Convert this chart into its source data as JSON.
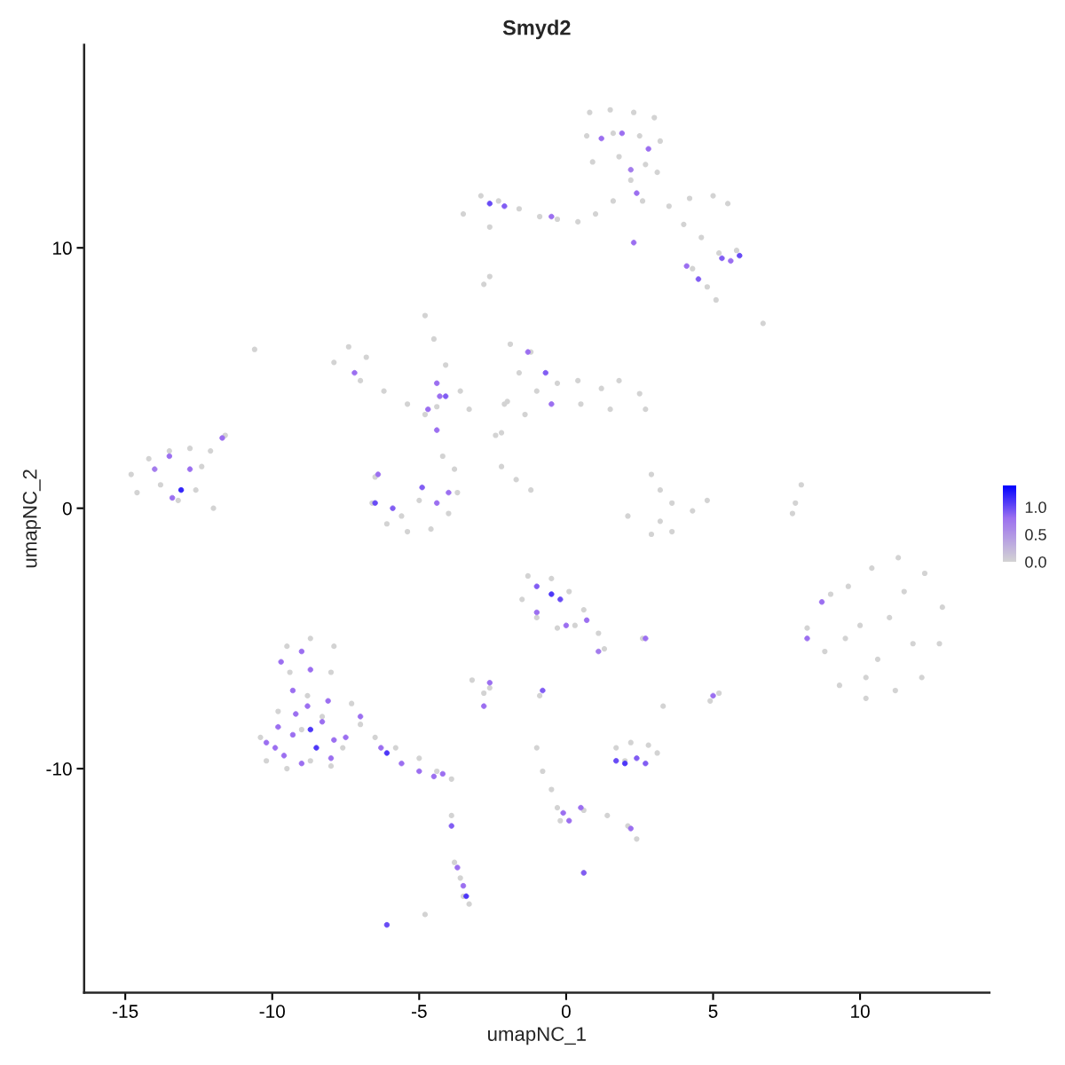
{
  "chart_data": {
    "type": "scatter",
    "title": "Smyd2",
    "xlabel": "umapNC_1",
    "ylabel": "umapNC_2",
    "xlim": [
      -16.4,
      14.4
    ],
    "ylim": [
      -18.6,
      17.8
    ],
    "xticks": [
      -15,
      -10,
      -5,
      0,
      5,
      10
    ],
    "yticks": [
      -10,
      0,
      10
    ],
    "clim": [
      0,
      1.4
    ],
    "cticks": [
      {
        "value": 0,
        "label": "0.0"
      },
      {
        "value": 0.5,
        "label": "0.5"
      },
      {
        "value": 1,
        "label": "1.0"
      }
    ],
    "grid": false,
    "legend": false,
    "marker": "circle",
    "series": [
      {
        "color": "#d3d3d3",
        "x": [
          0.8,
          1.5,
          2.3,
          3.0,
          0.7,
          1.6,
          2.5,
          3.2,
          0.9,
          1.8,
          2.7,
          3.1,
          2.2,
          2.6,
          3.5,
          4.2,
          5.0,
          5.5,
          4.0,
          4.6,
          5.2,
          5.8,
          4.3,
          4.8,
          5.1,
          -3.5,
          -2.9,
          -2.3,
          -1.6,
          -0.9,
          -0.3,
          0.4,
          1.0,
          1.6,
          -2.6,
          -2.8,
          -2.6,
          6.7,
          -7.9,
          -7.4,
          -6.8,
          -7.0,
          -6.2,
          -5.4,
          -4.8,
          -4.4,
          -6.5,
          -6.6,
          -6.1,
          -5.4,
          -4.6,
          -4.0,
          -3.7,
          -3.8,
          -4.2,
          -5.0,
          -5.6,
          -4.8,
          -4.5,
          -4.1,
          -3.6,
          -3.3,
          -1.9,
          -1.2,
          -1.6,
          -1.0,
          -0.3,
          0.4,
          1.2,
          1.8,
          2.5,
          2.7,
          1.5,
          0.5,
          -1.4,
          -2.2,
          -2.1,
          -14.8,
          -14.6,
          -14.2,
          -13.5,
          -12.8,
          -12.4,
          -12.6,
          -13.2,
          -13.8,
          -12.0,
          -11.6,
          -12.1,
          2.9,
          3.2,
          3.6,
          4.3,
          4.8,
          3.6,
          2.9,
          2.1,
          3.2,
          8.2,
          8.8,
          9.0,
          9.3,
          10.2,
          11.2,
          12.1,
          12.7,
          12.8,
          12.2,
          11.3,
          10.4,
          9.6,
          10.0,
          11.0,
          11.8,
          10.6,
          9.5,
          11.5,
          10.2,
          8.0,
          7.8,
          7.7,
          -1.3,
          -0.5,
          0.1,
          0.6,
          1.1,
          1.3,
          -1.5,
          -1.0,
          -0.3,
          0.3,
          -10.4,
          -10.2,
          -9.5,
          -8.7,
          -8.0,
          -7.6,
          -9.8,
          -9.4,
          -9.5,
          -8.7,
          -7.9,
          -8.0,
          -8.8,
          -7.3,
          -7.0,
          -6.5,
          -5.8,
          -5.0,
          -4.4,
          -3.9,
          -9.0,
          -8.3,
          -3.2,
          -2.6,
          -2.8,
          -0.9,
          4.9,
          5.2,
          1.7,
          2.2,
          2.8,
          3.1,
          2.0,
          2.6,
          3.3,
          -1.0,
          -0.8,
          -0.5,
          -0.3,
          -0.2,
          0.6,
          1.4,
          2.1,
          2.4,
          -3.8,
          -3.6,
          -3.5,
          -3.3,
          -3.9,
          -4.8,
          0.6,
          -2.2,
          -1.7,
          -1.2,
          -10.6,
          -2.4,
          -2.0
        ],
        "values": [
          15.2,
          15.3,
          15.2,
          15.0,
          14.3,
          14.4,
          14.3,
          14.1,
          13.3,
          13.5,
          13.2,
          12.9,
          12.6,
          11.8,
          11.6,
          11.9,
          12.0,
          11.7,
          10.9,
          10.4,
          9.8,
          9.9,
          9.2,
          8.5,
          8.0,
          11.3,
          12.0,
          11.8,
          11.5,
          11.2,
          11.1,
          11.0,
          11.3,
          11.8,
          10.8,
          8.6,
          8.9,
          7.1,
          5.6,
          6.2,
          5.8,
          4.9,
          4.5,
          4.0,
          3.6,
          3.9,
          1.2,
          0.2,
          -0.6,
          -0.9,
          -0.8,
          -0.2,
          0.6,
          1.5,
          2.0,
          0.3,
          -0.3,
          7.4,
          6.5,
          5.5,
          4.5,
          3.8,
          6.3,
          6.0,
          5.2,
          4.5,
          4.8,
          4.9,
          4.6,
          4.9,
          4.4,
          3.8,
          3.8,
          4.0,
          3.6,
          2.9,
          4.0,
          1.3,
          0.6,
          1.9,
          2.2,
          2.3,
          1.6,
          0.7,
          0.3,
          0.9,
          0.0,
          2.8,
          2.2,
          1.3,
          0.7,
          0.2,
          -0.1,
          0.3,
          -0.9,
          -1.0,
          -0.3,
          -0.5,
          -4.6,
          -5.5,
          -3.3,
          -6.8,
          -7.3,
          -7.0,
          -6.5,
          -5.2,
          -3.8,
          -2.5,
          -1.9,
          -2.3,
          -3.0,
          -4.5,
          -4.2,
          -5.2,
          -5.8,
          -5.0,
          -3.2,
          -6.5,
          0.9,
          0.2,
          -0.2,
          -2.6,
          -2.7,
          -3.2,
          -3.9,
          -4.8,
          -5.4,
          -3.5,
          -4.2,
          -4.6,
          -4.5,
          -8.8,
          -9.7,
          -10.0,
          -9.7,
          -9.9,
          -9.2,
          -7.8,
          -6.3,
          -5.3,
          -5.0,
          -5.3,
          -6.3,
          -7.2,
          -7.5,
          -8.3,
          -8.8,
          -9.2,
          -9.6,
          -10.1,
          -10.4,
          -8.5,
          -8.0,
          -6.6,
          -6.9,
          -7.1,
          -7.2,
          -7.4,
          -7.1,
          -9.2,
          -9.0,
          -9.1,
          -9.4,
          -9.7,
          -5.0,
          -7.6,
          -9.2,
          -10.1,
          -10.8,
          -11.5,
          -12.0,
          -11.6,
          -11.8,
          -12.2,
          -12.7,
          -13.6,
          -14.2,
          -14.9,
          -15.2,
          -11.8,
          -15.6,
          -14.0,
          1.6,
          1.1,
          0.7,
          6.1,
          2.8,
          4.1
        ]
      },
      {
        "x": [
          1.2,
          1.9,
          2.8,
          2.2,
          -2.6,
          -2.1,
          -0.5,
          2.4,
          5.3,
          5.9,
          5.6,
          4.1,
          4.5,
          2.3,
          -1.3,
          -0.7,
          -0.5,
          -7.2,
          -4.7,
          -4.3,
          -4.4,
          -6.4,
          -6.5,
          -5.9,
          -4.9,
          -4.4,
          -4.0,
          -13.5,
          -13.1,
          -12.8,
          -14.0,
          -13.4,
          -11.7,
          -1.0,
          -0.5,
          -0.2,
          -1.0,
          0.0,
          0.7,
          1.1,
          -9.7,
          -9.0,
          -8.7,
          -9.3,
          -8.8,
          -9.8,
          -9.3,
          -8.7,
          -8.5,
          -7.9,
          -9.6,
          -9.0,
          -10.2,
          -8.0,
          -9.9,
          -8.3,
          -7.5,
          -7.0,
          -6.3,
          -6.1,
          -5.6,
          -5.0,
          -4.5,
          -4.2,
          -9.2,
          -8.1,
          -2.6,
          -2.8,
          -0.8,
          1.7,
          2.0,
          2.4,
          2.7,
          5.0,
          2.7,
          8.2,
          8.7,
          -0.1,
          0.1,
          0.5,
          2.2,
          0.6,
          -3.4,
          -3.5,
          -3.7,
          -6.1,
          -3.9,
          -4.4,
          -4.1
        ],
        "values": [
          14.2,
          14.4,
          13.8,
          13.0,
          11.7,
          11.6,
          11.2,
          12.1,
          9.6,
          9.7,
          9.5,
          9.3,
          8.8,
          10.2,
          6.0,
          5.2,
          4.0,
          5.2,
          3.8,
          4.3,
          3.0,
          1.3,
          0.2,
          0.0,
          0.8,
          0.2,
          0.6,
          2.0,
          0.7,
          1.5,
          1.5,
          0.4,
          2.7,
          -3.0,
          -3.3,
          -3.5,
          -4.0,
          -4.5,
          -4.3,
          -5.5,
          -5.9,
          -5.5,
          -6.2,
          -7.0,
          -7.6,
          -8.4,
          -8.7,
          -8.5,
          -9.2,
          -8.9,
          -9.5,
          -9.8,
          -9.0,
          -9.6,
          -9.2,
          -8.2,
          -8.8,
          -8.0,
          -9.2,
          -9.4,
          -9.8,
          -10.1,
          -10.3,
          -10.2,
          -7.9,
          -7.4,
          -6.7,
          -7.6,
          -7.0,
          -9.7,
          -9.8,
          -9.6,
          -9.8,
          -7.2,
          -5.0,
          -5.0,
          -3.6,
          -11.7,
          -12.0,
          -11.5,
          -12.3,
          -14.0,
          -14.9,
          -14.5,
          -13.8,
          -16.0,
          -12.2,
          4.8,
          4.3
        ],
        "colors": [
          "#9c6ff0",
          "#9c6ff0",
          "#9c6ff0",
          "#a37cec",
          "#684af5",
          "#825df3",
          "#9c6ff0",
          "#9c6ff0",
          "#825df3",
          "#684af5",
          "#9c6ff0",
          "#9c6ff0",
          "#825df3",
          "#9c6ff0",
          "#9c6ff0",
          "#825df3",
          "#9c6ff0",
          "#9c6ff0",
          "#9c6ff0",
          "#9c6ff0",
          "#9c6ff0",
          "#9c6ff0",
          "#684af5",
          "#825df3",
          "#825df3",
          "#9c6ff0",
          "#9c6ff0",
          "#9c6ff0",
          "#3425fa",
          "#9c6ff0",
          "#a37cec",
          "#9c6ff0",
          "#9c6ff0",
          "#825df3",
          "#4e38f8",
          "#684af5",
          "#9c6ff0",
          "#9c6ff0",
          "#9c6ff0",
          "#a37cec",
          "#9c6ff0",
          "#9c6ff0",
          "#9c6ff0",
          "#9c6ff0",
          "#9c6ff0",
          "#9c6ff0",
          "#9c6ff0",
          "#4e38f8",
          "#4e38f8",
          "#9c6ff0",
          "#9c6ff0",
          "#9c6ff0",
          "#9c6ff0",
          "#9c6ff0",
          "#9c6ff0",
          "#9c6ff0",
          "#9c6ff0",
          "#9c6ff0",
          "#9c6ff0",
          "#4e38f8",
          "#9c6ff0",
          "#9c6ff0",
          "#9c6ff0",
          "#9c6ff0",
          "#9c6ff0",
          "#9c6ff0",
          "#9c6ff0",
          "#9c6ff0",
          "#825df3",
          "#684af5",
          "#4e38f8",
          "#825df3",
          "#825df3",
          "#9c6ff0",
          "#9c6ff0",
          "#9c6ff0",
          "#9c6ff0",
          "#9c6ff0",
          "#9c6ff0",
          "#9c6ff0",
          "#9c6ff0",
          "#825df3",
          "#4e38f8",
          "#9c6ff0",
          "#9c6ff0",
          "#684af5",
          "#825df3",
          "#9c6ff0",
          "#825df3"
        ],
        "cvalues": [
          0.8,
          0.8,
          0.8,
          0.7,
          1.0,
          0.9,
          0.8,
          0.8,
          0.9,
          1.0,
          0.8,
          0.8,
          0.9,
          0.8,
          0.8,
          0.9,
          0.8,
          0.8,
          0.8,
          0.8,
          0.8,
          0.8,
          1.0,
          0.9,
          0.9,
          0.8,
          0.8,
          0.8,
          1.2,
          0.8,
          0.7,
          0.8,
          0.8,
          0.9,
          1.1,
          1.0,
          0.8,
          0.8,
          0.8,
          0.7,
          0.8,
          0.8,
          0.8,
          0.8,
          0.8,
          0.8,
          0.8,
          1.1,
          1.1,
          0.8,
          0.8,
          0.8,
          0.8,
          0.8,
          0.8,
          0.8,
          0.8,
          0.8,
          0.8,
          1.1,
          0.8,
          0.8,
          0.8,
          0.8,
          0.8,
          0.8,
          0.8,
          0.8,
          0.9,
          1.0,
          1.1,
          0.9,
          0.9,
          0.8,
          0.8,
          0.8,
          0.8,
          0.8,
          0.8,
          0.8,
          0.8,
          0.9,
          1.1,
          0.8,
          0.8,
          1.0,
          0.9,
          0.8,
          0.9
        ]
      }
    ]
  }
}
